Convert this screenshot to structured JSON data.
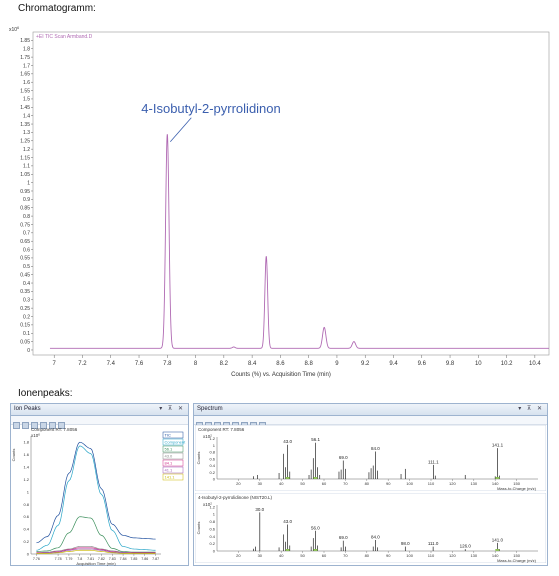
{
  "headings": {
    "top": "Chromatogramm:",
    "bottom": "Ionenpeaks:"
  },
  "chart_data": [
    {
      "type": "line",
      "panel": "chromatogram",
      "legend_label": "+EI TIC Scan Armband.D",
      "annotation": "4-Isobutyl-2-pyrrolidinon",
      "exponent_label": "x10",
      "exponent_power": "6",
      "xlabel": "Counts (%) vs. Acquisition Time (min)",
      "xlim": [
        6.85,
        10.5
      ],
      "ylim": [
        -0.03,
        1.9
      ],
      "x_ticks": [
        "7",
        "7.2",
        "7.4",
        "7.6",
        "7.8",
        "8",
        "8.2",
        "8.4",
        "8.6",
        "8.8",
        "9",
        "9.2",
        "9.4",
        "9.6",
        "9.8",
        "10",
        "10.2",
        "10.4"
      ],
      "y_ticks": [
        "0",
        "0.05",
        "0.1",
        "0.15",
        "0.2",
        "0.25",
        "0.3",
        "0.35",
        "0.4",
        "0.45",
        "0.5",
        "0.55",
        "0.6",
        "0.65",
        "0.7",
        "0.75",
        "0.8",
        "0.85",
        "0.9",
        "0.95",
        "1",
        "1.05",
        "1.1",
        "1.15",
        "1.2",
        "1.25",
        "1.3",
        "1.35",
        "1.4",
        "1.45",
        "1.5",
        "1.55",
        "1.6",
        "1.65",
        "1.7",
        "1.75",
        "1.8",
        "1.85"
      ],
      "baseline": 0.01,
      "peaks": [
        {
          "x": 7.8,
          "height": 1.28,
          "width": 0.012
        },
        {
          "x": 8.5,
          "height": 0.55,
          "width": 0.01
        },
        {
          "x": 8.91,
          "height": 0.125,
          "width": 0.012
        },
        {
          "x": 9.12,
          "height": 0.04,
          "width": 0.012
        },
        {
          "x": 8.27,
          "height": 0.008,
          "width": 0.01
        }
      ],
      "color": "#b06ab3"
    },
    {
      "type": "line",
      "panel": "ion-peaks",
      "title": "Component RT: 7.8056",
      "exponent_label": "x10",
      "exponent_power": "6",
      "ylabel": "Counts",
      "xlabel": "Acquisition Time (min)",
      "xlim": [
        7.755,
        7.875
      ],
      "ylim": [
        0,
        1.9
      ],
      "x_ticks": [
        "7.76",
        "7.78",
        "7.79",
        "7.8",
        "7.81",
        "7.82",
        "7.83",
        "7.84",
        "7.85",
        "7.86",
        "7.87"
      ],
      "y_ticks": [
        "0",
        "0.2",
        "0.4",
        "0.6",
        "0.8",
        "1",
        "1.2",
        "1.4",
        "1.6",
        "1.8"
      ],
      "legend": [
        "TIC",
        "Component",
        "56.1",
        "43.0",
        "84.1",
        "41.1",
        "141.1"
      ],
      "series": [
        {
          "name": "TIC",
          "color": "#1f4f9e",
          "x": [
            7.76,
            7.77,
            7.78,
            7.79,
            7.8,
            7.81,
            7.82,
            7.83,
            7.84,
            7.85,
            7.86,
            7.87
          ],
          "y": [
            0.18,
            0.28,
            0.62,
            1.3,
            1.8,
            1.7,
            1.05,
            0.48,
            0.3,
            0.26,
            0.25,
            0.24
          ]
        },
        {
          "name": "Component",
          "color": "#2aa6c8",
          "x": [
            7.76,
            7.77,
            7.78,
            7.79,
            7.8,
            7.81,
            7.82,
            7.83,
            7.84,
            7.85,
            7.86,
            7.87
          ],
          "y": [
            0.06,
            0.14,
            0.46,
            1.18,
            1.74,
            1.62,
            0.96,
            0.38,
            0.12,
            0.08,
            0.07,
            0.06
          ]
        },
        {
          "name": "56.1",
          "color": "#3c8f5c",
          "x": [
            7.76,
            7.77,
            7.78,
            7.79,
            7.8,
            7.81,
            7.82,
            7.83,
            7.84,
            7.85,
            7.86,
            7.87
          ],
          "y": [
            0.04,
            0.05,
            0.1,
            0.34,
            0.6,
            0.58,
            0.3,
            0.09,
            0.04,
            0.03,
            0.03,
            0.03
          ]
        },
        {
          "name": "43.0",
          "color": "#8a8a8a",
          "x": [
            7.76,
            7.77,
            7.78,
            7.79,
            7.8,
            7.81,
            7.82,
            7.83,
            7.84,
            7.85,
            7.86,
            7.87
          ],
          "y": [
            0.02,
            0.03,
            0.05,
            0.08,
            0.12,
            0.12,
            0.08,
            0.05,
            0.03,
            0.02,
            0.02,
            0.02
          ]
        },
        {
          "name": "84.1",
          "color": "#d0308a",
          "x": [
            7.76,
            7.77,
            7.78,
            7.79,
            7.8,
            7.81,
            7.82,
            7.83,
            7.84,
            7.85,
            7.86,
            7.87
          ],
          "y": [
            0.02,
            0.02,
            0.04,
            0.07,
            0.1,
            0.1,
            0.07,
            0.04,
            0.02,
            0.02,
            0.02,
            0.02
          ]
        },
        {
          "name": "41.1",
          "color": "#9b59b6",
          "x": [
            7.76,
            7.77,
            7.78,
            7.79,
            7.8,
            7.81,
            7.82,
            7.83,
            7.84,
            7.85,
            7.86,
            7.87
          ],
          "y": [
            0.01,
            0.02,
            0.03,
            0.06,
            0.08,
            0.08,
            0.06,
            0.03,
            0.02,
            0.01,
            0.01,
            0.01
          ]
        },
        {
          "name": "141.1",
          "color": "#c9b800",
          "x": [
            7.76,
            7.77,
            7.78,
            7.79,
            7.8,
            7.81,
            7.82,
            7.83,
            7.84,
            7.85,
            7.86,
            7.87
          ],
          "y": [
            0.01,
            0.01,
            0.02,
            0.04,
            0.06,
            0.06,
            0.04,
            0.02,
            0.01,
            0.01,
            0.01,
            0.01
          ]
        }
      ]
    },
    {
      "type": "bar",
      "panel": "spectrum-component",
      "title": "Component RT: 7.8056",
      "exponent_label": "x10",
      "exponent_power": "2",
      "ylabel": "Counts",
      "xlabel": "Mass-to-Charge (m/z)",
      "xlim": [
        10,
        160
      ],
      "ylim": [
        0,
        1.25
      ],
      "x_ticks": [
        "20",
        "30",
        "40",
        "50",
        "60",
        "70",
        "80",
        "90",
        "100",
        "110",
        "120",
        "130",
        "140",
        "150"
      ],
      "y_ticks": [
        "0",
        "0.2",
        "0.4",
        "0.6",
        "0.8",
        "1",
        "1.2"
      ],
      "labels": [
        "43.0",
        "56.1",
        "69.0",
        "84.0",
        "111.1",
        "141.1"
      ],
      "peaks": [
        {
          "mz": 27,
          "v": 0.08
        },
        {
          "mz": 29,
          "v": 0.12
        },
        {
          "mz": 39,
          "v": 0.18
        },
        {
          "mz": 41,
          "v": 0.75
        },
        {
          "mz": 42,
          "v": 0.35
        },
        {
          "mz": 43,
          "v": 1.02,
          "label": "43.0"
        },
        {
          "mz": 44,
          "v": 0.22
        },
        {
          "mz": 53,
          "v": 0.12
        },
        {
          "mz": 54,
          "v": 0.28
        },
        {
          "mz": 55,
          "v": 0.62
        },
        {
          "mz": 56.1,
          "v": 1.08,
          "label": "56.1"
        },
        {
          "mz": 57,
          "v": 0.35
        },
        {
          "mz": 58,
          "v": 0.12
        },
        {
          "mz": 67,
          "v": 0.22
        },
        {
          "mz": 68,
          "v": 0.28
        },
        {
          "mz": 69,
          "v": 0.55,
          "label": "69.0"
        },
        {
          "mz": 70,
          "v": 0.3
        },
        {
          "mz": 81,
          "v": 0.2
        },
        {
          "mz": 82,
          "v": 0.32
        },
        {
          "mz": 83,
          "v": 0.4
        },
        {
          "mz": 84,
          "v": 0.82,
          "label": "84.0"
        },
        {
          "mz": 85,
          "v": 0.25
        },
        {
          "mz": 96,
          "v": 0.15
        },
        {
          "mz": 98,
          "v": 0.3
        },
        {
          "mz": 111.1,
          "v": 0.42,
          "label": "111.1"
        },
        {
          "mz": 112,
          "v": 0.1
        },
        {
          "mz": 126,
          "v": 0.12
        },
        {
          "mz": 140,
          "v": 0.08
        },
        {
          "mz": 141.1,
          "v": 0.92,
          "label": "141.1"
        },
        {
          "mz": 142,
          "v": 0.1
        }
      ]
    },
    {
      "type": "bar",
      "panel": "spectrum-library",
      "title": "4-Isobutyl-2-pyrrolidinone (NIST20.L)",
      "exponent_label": "x10",
      "exponent_power": "2",
      "ylabel": "Counts",
      "xlabel": "Mass-to-Charge (m/z)",
      "xlim": [
        10,
        160
      ],
      "ylim": [
        0,
        1.25
      ],
      "x_ticks": [
        "20",
        "30",
        "40",
        "50",
        "60",
        "70",
        "80",
        "90",
        "100",
        "110",
        "120",
        "130",
        "140",
        "150"
      ],
      "y_ticks": [
        "0",
        "0.2",
        "0.4",
        "0.6",
        "0.8",
        "1",
        "1.2"
      ],
      "labels": [
        "30.0",
        "43.0",
        "56.0",
        "69.0",
        "84.0",
        "98.0",
        "111.0",
        "126.0",
        "141.0"
      ],
      "peaks": [
        {
          "mz": 27,
          "v": 0.06
        },
        {
          "mz": 28,
          "v": 0.12
        },
        {
          "mz": 30,
          "v": 1.05,
          "label": "30.0"
        },
        {
          "mz": 39,
          "v": 0.1
        },
        {
          "mz": 41,
          "v": 0.45
        },
        {
          "mz": 42,
          "v": 0.25
        },
        {
          "mz": 43,
          "v": 0.72,
          "label": "43.0"
        },
        {
          "mz": 44,
          "v": 0.15
        },
        {
          "mz": 54,
          "v": 0.12
        },
        {
          "mz": 55,
          "v": 0.35
        },
        {
          "mz": 56,
          "v": 0.55,
          "label": "56.0"
        },
        {
          "mz": 57,
          "v": 0.15
        },
        {
          "mz": 68,
          "v": 0.1
        },
        {
          "mz": 69,
          "v": 0.28,
          "label": "69.0"
        },
        {
          "mz": 70,
          "v": 0.12
        },
        {
          "mz": 83,
          "v": 0.12
        },
        {
          "mz": 84,
          "v": 0.3,
          "label": "84.0"
        },
        {
          "mz": 85,
          "v": 0.1
        },
        {
          "mz": 98,
          "v": 0.12,
          "label": "98.0"
        },
        {
          "mz": 111,
          "v": 0.12,
          "label": "111.0"
        },
        {
          "mz": 126,
          "v": 0.05,
          "label": "126.0"
        },
        {
          "mz": 141,
          "v": 0.22,
          "label": "141.0"
        },
        {
          "mz": 142,
          "v": 0.05
        }
      ]
    }
  ],
  "panels": {
    "ion_peaks": {
      "title": "Ion Peaks",
      "controls": "▾ ⊼ ✕"
    },
    "spectrum": {
      "title": "Spectrum",
      "controls": "▾ ⊼ ✕"
    }
  },
  "colors": {
    "chromatogram": "#b06ab3",
    "annotation": "#3b5fae",
    "pane_border": "#9db3cf"
  }
}
